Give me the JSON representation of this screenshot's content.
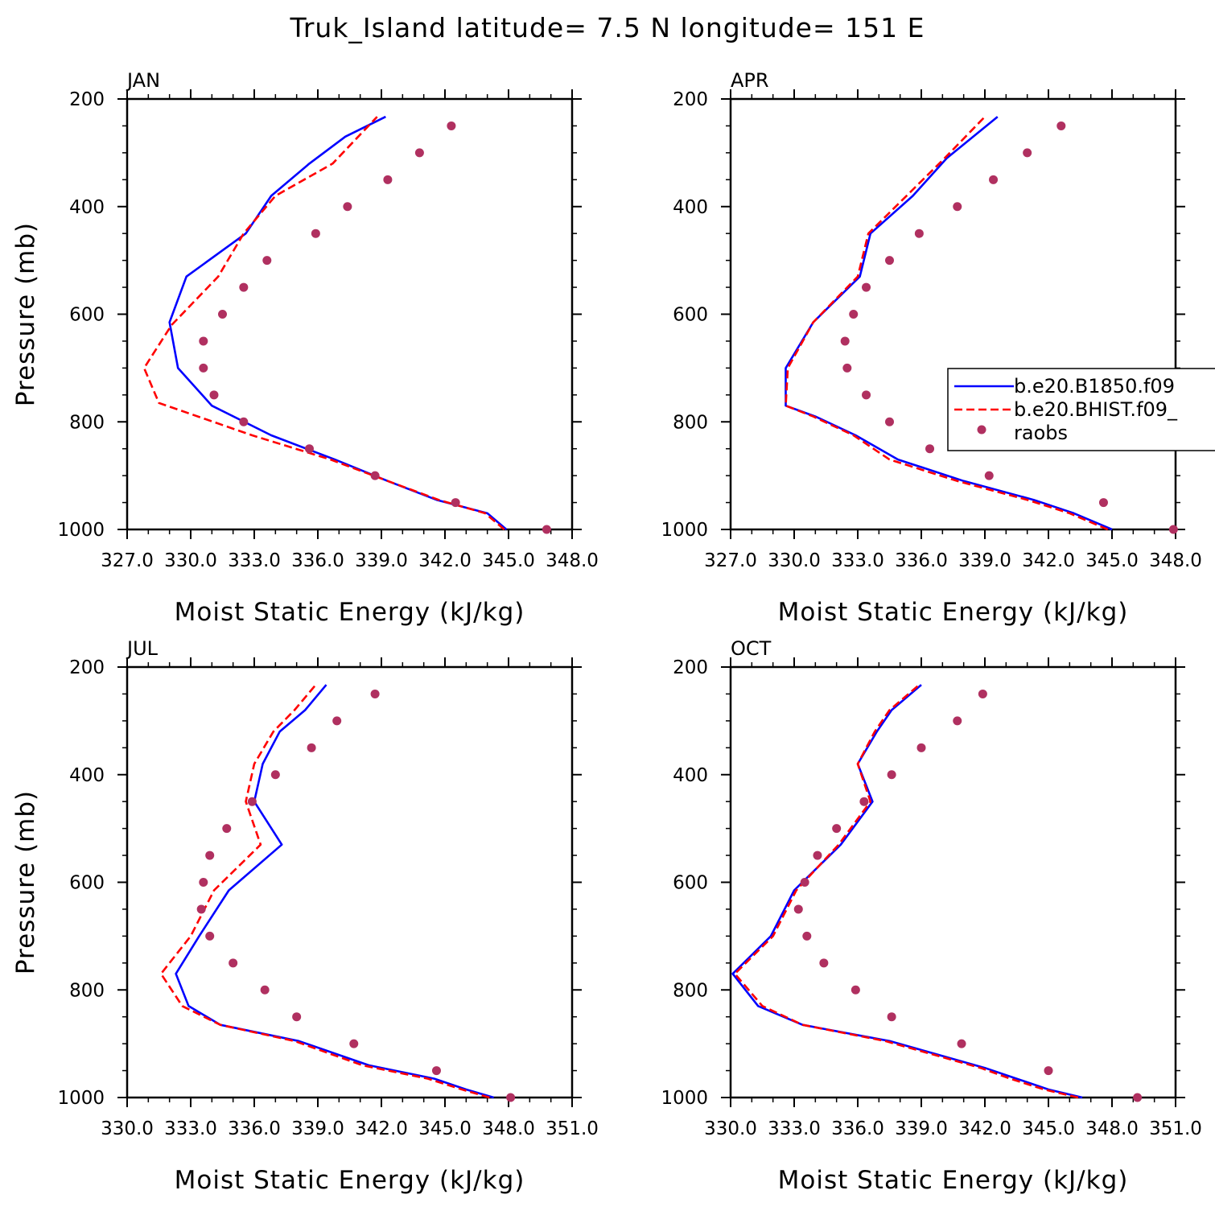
{
  "figure": {
    "title": "Truk_Island  latitude= 7.5 N longitude= 151 E",
    "colors": {
      "model_a": "#0000ff",
      "model_b": "#ff0000",
      "raobs": "#b03060"
    },
    "legend": {
      "placement": "right, overlapping APR panel",
      "entries": [
        "b.e20.B1850.f09",
        "b.e20.BHIST.f09_",
        "raobs"
      ]
    }
  },
  "chart_data": [
    {
      "type": "line",
      "panel": "JAN",
      "xlabel": "Moist Static Energy (kJ/kg)",
      "ylabel": "Pressure (mb)",
      "xlim": [
        327.0,
        348.0
      ],
      "ylim": [
        1000,
        200
      ],
      "x_ticks": [
        "327.0",
        "330.0",
        "333.0",
        "336.0",
        "339.0",
        "342.0",
        "345.0",
        "348.0"
      ],
      "y_ticks": [
        "200",
        "400",
        "600",
        "800",
        "1000"
      ],
      "series": [
        {
          "name": "b.e20.B1850.f09",
          "style": "solid",
          "color": "#0000ff",
          "x": [
            344.9,
            344.0,
            341.6,
            339.3,
            336.8,
            333.8,
            331.0,
            329.4,
            329.0,
            329.8,
            332.6,
            333.8,
            335.6,
            337.3,
            339.2
          ],
          "y": [
            1000,
            970,
            945,
            910,
            870,
            825,
            770,
            700,
            615,
            530,
            450,
            380,
            320,
            270,
            233
          ]
        },
        {
          "name": "b.e20.BHIST.f09_",
          "style": "dashed",
          "color": "#ff0000",
          "x": [
            344.8,
            343.9,
            341.7,
            339.3,
            336.6,
            332.9,
            328.5,
            327.8,
            329.1,
            331.3,
            332.5,
            334.0,
            336.7,
            338.8
          ],
          "y": [
            1000,
            970,
            945,
            910,
            870,
            825,
            765,
            700,
            620,
            530,
            450,
            380,
            320,
            233
          ]
        },
        {
          "name": "raobs",
          "style": "markers",
          "color": "#b03060",
          "x": [
            346.8,
            342.5,
            338.7,
            335.6,
            332.5,
            331.1,
            330.6,
            330.6,
            331.5,
            332.5,
            333.6,
            335.9,
            337.4,
            339.3,
            340.8,
            342.3
          ],
          "y": [
            1000,
            950,
            900,
            850,
            800,
            750,
            700,
            650,
            600,
            550,
            500,
            450,
            400,
            350,
            300,
            250
          ]
        }
      ]
    },
    {
      "type": "line",
      "panel": "APR",
      "xlabel": "Moist Static Energy (kJ/kg)",
      "ylabel": "",
      "xlim": [
        327.0,
        348.0
      ],
      "ylim": [
        1000,
        200
      ],
      "x_ticks": [
        "327.0",
        "330.0",
        "333.0",
        "336.0",
        "339.0",
        "342.0",
        "345.0",
        "348.0"
      ],
      "y_ticks": [
        "200",
        "400",
        "600",
        "800",
        "1000"
      ],
      "series": [
        {
          "name": "b.e20.B1850.f09",
          "style": "solid",
          "color": "#0000ff",
          "x": [
            345.0,
            343.2,
            341.3,
            338.0,
            334.9,
            332.9,
            331.0,
            329.6,
            329.6,
            330.9,
            333.1,
            333.6,
            335.6,
            337.2,
            339.6
          ],
          "y": [
            1000,
            970,
            945,
            910,
            870,
            825,
            790,
            770,
            700,
            615,
            530,
            450,
            380,
            310,
            233
          ]
        },
        {
          "name": "b.e20.BHIST.f09_",
          "style": "dashed",
          "color": "#ff0000",
          "x": [
            344.8,
            343.0,
            341.0,
            337.7,
            334.5,
            332.8,
            330.9,
            329.6,
            329.7,
            330.9,
            333.0,
            333.5,
            335.3,
            337.1,
            339.0
          ],
          "y": [
            1000,
            970,
            945,
            910,
            870,
            825,
            790,
            770,
            700,
            615,
            530,
            450,
            380,
            310,
            233
          ]
        },
        {
          "name": "raobs",
          "style": "markers",
          "color": "#b03060",
          "x": [
            347.9,
            344.6,
            339.2,
            336.4,
            334.5,
            333.4,
            332.5,
            332.4,
            332.8,
            333.4,
            334.5,
            335.9,
            337.7,
            339.4,
            341.0,
            342.6
          ],
          "y": [
            1000,
            950,
            900,
            850,
            800,
            750,
            700,
            650,
            600,
            550,
            500,
            450,
            400,
            350,
            300,
            250
          ]
        }
      ]
    },
    {
      "type": "line",
      "panel": "JUL",
      "xlabel": "Moist Static Energy (kJ/kg)",
      "ylabel": "Pressure (mb)",
      "xlim": [
        330.0,
        351.0
      ],
      "ylim": [
        1000,
        200
      ],
      "x_ticks": [
        "330.0",
        "333.0",
        "336.0",
        "339.0",
        "342.0",
        "345.0",
        "348.0",
        "351.0"
      ],
      "y_ticks": [
        "200",
        "400",
        "600",
        "800",
        "1000"
      ],
      "series": [
        {
          "name": "b.e20.B1850.f09",
          "style": "solid",
          "color": "#0000ff",
          "x": [
            347.3,
            346.0,
            344.5,
            341.4,
            338.1,
            334.4,
            332.9,
            332.3,
            333.4,
            334.8,
            337.3,
            336.0,
            336.4,
            337.2,
            338.4,
            339.4
          ],
          "y": [
            1000,
            985,
            965,
            940,
            895,
            865,
            830,
            770,
            700,
            615,
            530,
            450,
            380,
            320,
            280,
            233
          ]
        },
        {
          "name": "b.e20.BHIST.f09_",
          "style": "dashed",
          "color": "#ff0000",
          "x": [
            347.1,
            345.8,
            344.2,
            341.1,
            337.9,
            334.4,
            332.6,
            331.6,
            333.0,
            334.1,
            336.3,
            335.6,
            336.0,
            336.9,
            337.9,
            338.9
          ],
          "y": [
            1000,
            985,
            965,
            940,
            895,
            865,
            830,
            770,
            700,
            615,
            530,
            450,
            380,
            320,
            280,
            233
          ]
        },
        {
          "name": "raobs",
          "style": "markers",
          "color": "#b03060",
          "x": [
            348.1,
            344.6,
            340.7,
            338.0,
            336.5,
            335.0,
            333.9,
            333.5,
            333.6,
            333.9,
            334.7,
            335.9,
            337.0,
            338.7,
            339.9,
            341.7
          ],
          "y": [
            1000,
            950,
            900,
            850,
            800,
            750,
            700,
            650,
            600,
            550,
            500,
            450,
            400,
            350,
            300,
            250
          ]
        }
      ]
    },
    {
      "type": "line",
      "panel": "OCT",
      "xlabel": "Moist Static Energy (kJ/kg)",
      "ylabel": "",
      "xlim": [
        330.0,
        351.0
      ],
      "ylim": [
        1000,
        200
      ],
      "x_ticks": [
        "330.0",
        "333.0",
        "336.0",
        "339.0",
        "342.0",
        "345.0",
        "348.0",
        "351.0"
      ],
      "y_ticks": [
        "200",
        "400",
        "600",
        "800",
        "1000"
      ],
      "series": [
        {
          "name": "b.e20.B1850.f09",
          "style": "solid",
          "color": "#0000ff",
          "x": [
            346.6,
            345.0,
            343.5,
            342.0,
            337.5,
            333.4,
            331.3,
            330.1,
            331.9,
            333.0,
            335.2,
            336.7,
            336.0,
            336.9,
            337.6,
            339.0
          ],
          "y": [
            1000,
            985,
            965,
            945,
            895,
            865,
            830,
            770,
            700,
            615,
            530,
            450,
            380,
            320,
            280,
            233
          ]
        },
        {
          "name": "b.e20.BHIST.f09_",
          "style": "dashed",
          "color": "#ff0000",
          "x": [
            346.4,
            344.8,
            343.2,
            341.8,
            337.3,
            333.4,
            331.5,
            330.2,
            332.0,
            333.1,
            335.1,
            336.6,
            336.0,
            336.8,
            337.5,
            338.9
          ],
          "y": [
            1000,
            985,
            965,
            945,
            895,
            865,
            830,
            770,
            700,
            615,
            530,
            450,
            380,
            320,
            280,
            233
          ]
        },
        {
          "name": "raobs",
          "style": "markers",
          "color": "#b03060",
          "x": [
            349.2,
            345.0,
            340.9,
            337.6,
            335.9,
            334.4,
            333.6,
            333.2,
            333.5,
            334.1,
            335.0,
            336.3,
            337.6,
            339.0,
            340.7,
            341.9
          ],
          "y": [
            1000,
            950,
            900,
            850,
            800,
            750,
            700,
            650,
            600,
            550,
            500,
            450,
            400,
            350,
            300,
            250
          ]
        }
      ]
    }
  ]
}
